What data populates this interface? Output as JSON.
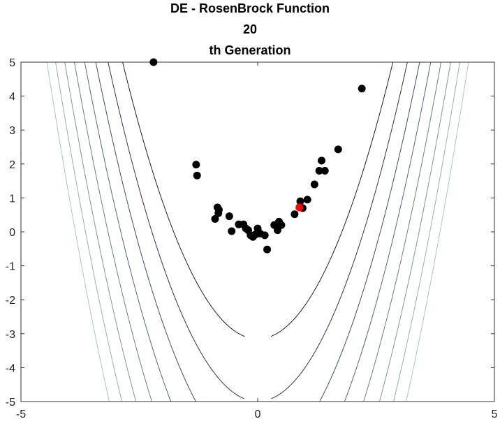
{
  "chart_data": {
    "type": "scatter",
    "title_lines": [
      "DE - RosenBrock Function",
      "20",
      "th Generation"
    ],
    "xlim": [
      -5,
      5
    ],
    "ylim": [
      -5,
      5
    ],
    "xticks": [
      "-5",
      "0",
      "5"
    ],
    "yticks": [
      "5",
      "4",
      "3",
      "2",
      "1",
      "0",
      "-1",
      "-2",
      "-3",
      "-4",
      "-5"
    ],
    "grid": false,
    "background": "contour of the Rosenbrock function",
    "colors": {
      "population": "#000000",
      "best": "#ff0000",
      "contour_dark": "#1a1a40",
      "contour_light": "#a8c8b8"
    },
    "series": [
      {
        "points": [
          [
            -2.2,
            5.0
          ],
          [
            2.2,
            4.22
          ],
          [
            -1.3,
            1.98
          ],
          [
            -1.28,
            1.66
          ],
          [
            1.7,
            2.43
          ],
          [
            1.35,
            2.1
          ],
          [
            1.3,
            1.8
          ],
          [
            1.42,
            1.8
          ],
          [
            1.2,
            1.4
          ],
          [
            1.05,
            0.95
          ],
          [
            0.9,
            0.9
          ],
          [
            0.95,
            0.7
          ],
          [
            0.78,
            0.52
          ],
          [
            -0.9,
            0.38
          ],
          [
            -0.83,
            0.55
          ],
          [
            -0.82,
            0.65
          ],
          [
            -0.85,
            0.72
          ],
          [
            -0.6,
            0.46
          ],
          [
            -0.55,
            0.02
          ],
          [
            -0.4,
            0.22
          ],
          [
            -0.3,
            0.22
          ],
          [
            -0.25,
            0.1
          ],
          [
            -0.15,
            -0.1
          ],
          [
            -0.1,
            -0.15
          ],
          [
            -0.05,
            -0.08
          ],
          [
            -0.2,
            0.05
          ],
          [
            0.0,
            0.1
          ],
          [
            0.05,
            -0.05
          ],
          [
            0.15,
            -0.1
          ],
          [
            0.2,
            -0.52
          ],
          [
            0.35,
            0.2
          ],
          [
            0.45,
            0.3
          ],
          [
            0.42,
            0.05
          ],
          [
            0.5,
            0.2
          ]
        ]
      },
      {
        "points": [
          [
            0.88,
            0.72
          ]
        ]
      }
    ]
  }
}
